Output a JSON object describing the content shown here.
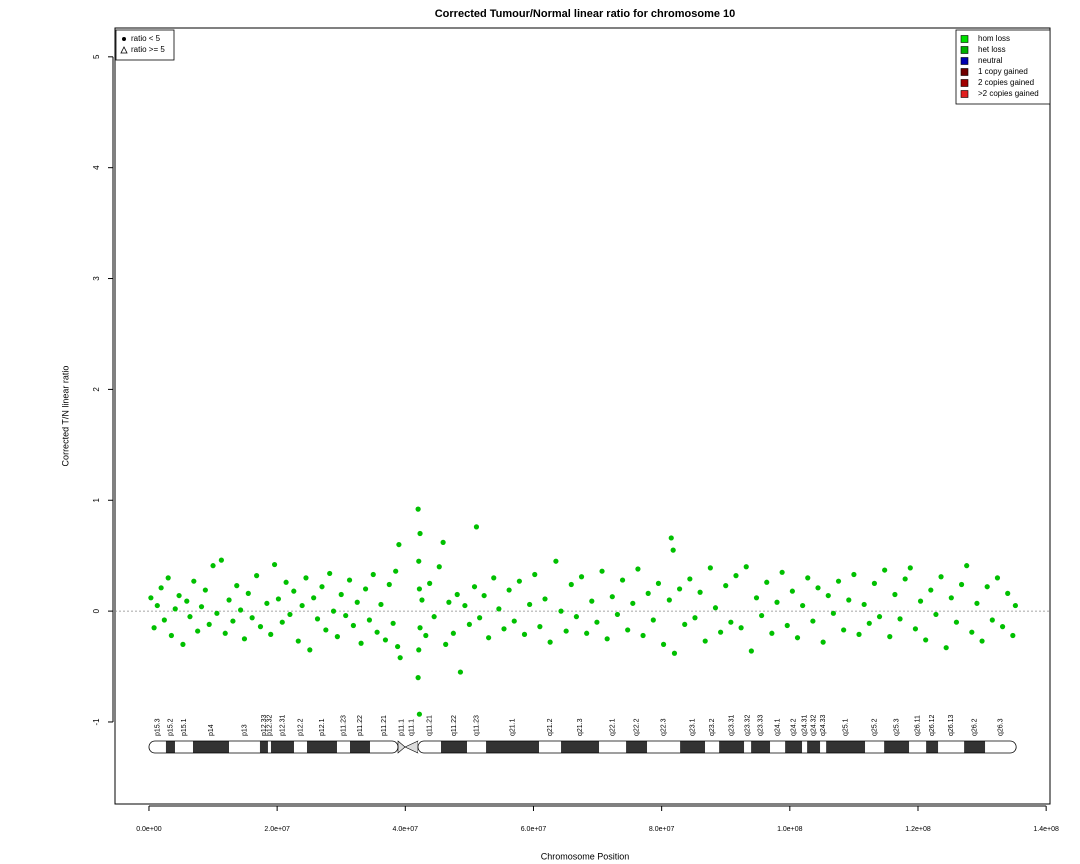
{
  "chart_data": {
    "type": "scatter",
    "title": "Corrected Tumour/Normal linear ratio for chromosome  10",
    "xlabel": "Chromosome Position",
    "ylabel": "Corrected T/N linear ratio",
    "xlim": [
      -5300000,
      140600000
    ],
    "ylim": [
      -1.74,
      5.26
    ],
    "xticks": [
      {
        "value": 0,
        "label": "0.0e+00"
      },
      {
        "value": 20000000,
        "label": "2.0e+07"
      },
      {
        "value": 40000000,
        "label": "4.0e+07"
      },
      {
        "value": 60000000,
        "label": "6.0e+07"
      },
      {
        "value": 80000000,
        "label": "8.0e+07"
      },
      {
        "value": 100000000,
        "label": "1.0e+08"
      },
      {
        "value": 120000000,
        "label": "1.2e+08"
      },
      {
        "value": 140000000,
        "label": "1.4e+08"
      }
    ],
    "yticks": [
      -1,
      0,
      1,
      2,
      3,
      4,
      5
    ],
    "reference_line": 0,
    "color": "#00c000",
    "marker_legend": [
      "ratio < 5",
      "ratio >= 5"
    ],
    "state_legend": [
      {
        "name": "hom loss",
        "color": "#00e000"
      },
      {
        "name": "het loss",
        "color": "#00b000"
      },
      {
        "name": "neutral",
        "color": "#0000b0"
      },
      {
        "name": "1 copy gained",
        "color": "#700000"
      },
      {
        "name": "2 copies gained",
        "color": "#a00000"
      },
      {
        "name": ">2 copies gained",
        "color": "#e02020"
      }
    ],
    "x": [
      300000,
      800000,
      1300000,
      1900000,
      2400000,
      3000000,
      3500000,
      4100000,
      4700000,
      5300000,
      5900000,
      6400000,
      7000000,
      7600000,
      8200000,
      8800000,
      9400000,
      10000000,
      10600000,
      11300000,
      11900000,
      12500000,
      13100000,
      13700000,
      14300000,
      14900000,
      15500000,
      16100000,
      16800000,
      17400000,
      18400000,
      19000000,
      19600000,
      20200000,
      20800000,
      21400000,
      22000000,
      22600000,
      23300000,
      23900000,
      24500000,
      25100000,
      25700000,
      26300000,
      27000000,
      27600000,
      28200000,
      28800000,
      29400000,
      30000000,
      30700000,
      31300000,
      31900000,
      32500000,
      33100000,
      33800000,
      34400000,
      35000000,
      35600000,
      36200000,
      36900000,
      37500000,
      38100000,
      38500000,
      38800000,
      39000000,
      39200000,
      42000000,
      42000000,
      42100000,
      42100000,
      42200000,
      42200000,
      42300000,
      42300000,
      42600000,
      43200000,
      43800000,
      44500000,
      45300000,
      45900000,
      46300000,
      46800000,
      47500000,
      48100000,
      48600000,
      49300000,
      50000000,
      50800000,
      51100000,
      51600000,
      52300000,
      53000000,
      53800000,
      54600000,
      55400000,
      56200000,
      57000000,
      57800000,
      58600000,
      59400000,
      60200000,
      61000000,
      61800000,
      62600000,
      63500000,
      64300000,
      65100000,
      65900000,
      66700000,
      67500000,
      68300000,
      69100000,
      69900000,
      70700000,
      71500000,
      72300000,
      73100000,
      73900000,
      74700000,
      75500000,
      76300000,
      77100000,
      77900000,
      78700000,
      79500000,
      80300000,
      81200000,
      81500000,
      81800000,
      82000000,
      82800000,
      83600000,
      84400000,
      85200000,
      86000000,
      86800000,
      87600000,
      88400000,
      89200000,
      90000000,
      90800000,
      91600000,
      92400000,
      93200000,
      94000000,
      94800000,
      95600000,
      96400000,
      97200000,
      98000000,
      98800000,
      99600000,
      100400000,
      101200000,
      102000000,
      102800000,
      103600000,
      104400000,
      105200000,
      106000000,
      106800000,
      107600000,
      108400000,
      109200000,
      110000000,
      110800000,
      111600000,
      112400000,
      113200000,
      114000000,
      114800000,
      115600000,
      116400000,
      117200000,
      118000000,
      118800000,
      119600000,
      120400000,
      121200000,
      122000000,
      122800000,
      123600000,
      124400000,
      125200000,
      126000000,
      126800000,
      127600000,
      128400000,
      129200000,
      130000000,
      130800000,
      131600000,
      132400000,
      133200000,
      134000000,
      134800000,
      135200000
    ],
    "y": [
      0.12,
      -0.15,
      0.05,
      0.21,
      -0.08,
      0.3,
      -0.22,
      0.02,
      0.14,
      -0.3,
      0.09,
      -0.05,
      0.27,
      -0.18,
      0.04,
      0.19,
      -0.12,
      0.41,
      -0.02,
      0.46,
      -0.2,
      0.1,
      -0.09,
      0.23,
      0.01,
      -0.25,
      0.16,
      -0.06,
      0.32,
      -0.14,
      0.07,
      -0.21,
      0.42,
      0.11,
      -0.1,
      0.26,
      -0.03,
      0.18,
      -0.27,
      0.05,
      0.3,
      -0.35,
      0.12,
      -0.07,
      0.22,
      -0.17,
      0.34,
      0.0,
      -0.23,
      0.15,
      -0.04,
      0.28,
      -0.13,
      0.08,
      -0.29,
      0.2,
      -0.08,
      0.33,
      -0.19,
      0.06,
      -0.26,
      0.24,
      -0.11,
      0.36,
      -0.32,
      0.6,
      -0.42,
      0.92,
      -0.6,
      0.45,
      -0.35,
      0.2,
      -0.93,
      0.7,
      -0.15,
      0.1,
      -0.22,
      0.25,
      -0.05,
      0.4,
      0.62,
      -0.3,
      0.08,
      -0.2,
      0.15,
      -0.55,
      0.05,
      -0.12,
      0.22,
      0.76,
      -0.06,
      0.14,
      -0.24,
      0.3,
      0.02,
      -0.16,
      0.19,
      -0.09,
      0.27,
      -0.21,
      0.06,
      0.33,
      -0.14,
      0.11,
      -0.28,
      0.45,
      0.0,
      -0.18,
      0.24,
      -0.05,
      0.31,
      -0.2,
      0.09,
      -0.1,
      0.36,
      -0.25,
      0.13,
      -0.03,
      0.28,
      -0.17,
      0.07,
      0.38,
      -0.22,
      0.16,
      -0.08,
      0.25,
      -0.3,
      0.1,
      0.66,
      0.55,
      -0.38,
      0.2,
      -0.12,
      0.29,
      -0.06,
      0.17,
      -0.27,
      0.39,
      0.03,
      -0.19,
      0.23,
      -0.1,
      0.32,
      -0.15,
      0.4,
      -0.36,
      0.12,
      -0.04,
      0.26,
      -0.2,
      0.08,
      0.35,
      -0.13,
      0.18,
      -0.24,
      0.05,
      0.3,
      -0.09,
      0.21,
      -0.28,
      0.14,
      -0.02,
      0.27,
      -0.17,
      0.1,
      0.33,
      -0.21,
      0.06,
      -0.11,
      0.25,
      -0.05,
      0.37,
      -0.23,
      0.15,
      -0.07,
      0.29,
      0.39,
      -0.16,
      0.09,
      -0.26,
      0.19,
      -0.03,
      0.31,
      -0.33,
      0.12,
      -0.1,
      0.24,
      0.41,
      -0.19,
      0.07,
      -0.27,
      0.22,
      -0.08,
      0.3,
      -0.14,
      0.16,
      -0.22,
      0.05
    ],
    "bands": [
      {
        "name": "p15.3",
        "start": 0,
        "end": 2650000,
        "stain": "gneg"
      },
      {
        "name": "p15.2",
        "start": 2650000,
        "end": 4060000,
        "stain": "gpos"
      },
      {
        "name": "p15.1",
        "start": 4060000,
        "end": 6870000,
        "stain": "gneg"
      },
      {
        "name": "p14",
        "start": 6870000,
        "end": 12490000,
        "stain": "gpos"
      },
      {
        "name": "p13",
        "start": 12490000,
        "end": 17320000,
        "stain": "gneg"
      },
      {
        "name": "p12.33",
        "start": 17320000,
        "end": 18570000,
        "stain": "gpos"
      },
      {
        "name": "p12.32",
        "start": 18570000,
        "end": 19040000,
        "stain": "gneg"
      },
      {
        "name": "p12.31",
        "start": 19040000,
        "end": 22630000,
        "stain": "gpos"
      },
      {
        "name": "p12.2",
        "start": 22630000,
        "end": 24660000,
        "stain": "gneg"
      },
      {
        "name": "p12.1",
        "start": 24660000,
        "end": 29340000,
        "stain": "gpos"
      },
      {
        "name": "p11.23",
        "start": 29340000,
        "end": 31370000,
        "stain": "gneg"
      },
      {
        "name": "p11.22",
        "start": 31370000,
        "end": 34490000,
        "stain": "gpos"
      },
      {
        "name": "p11.21",
        "start": 34490000,
        "end": 38860000,
        "stain": "gneg"
      },
      {
        "name": "p11.1",
        "start": 38860000,
        "end": 39960000,
        "stain": "acen"
      },
      {
        "name": "q11.1",
        "start": 39960000,
        "end": 41980000,
        "stain": "acen"
      },
      {
        "name": "q11.21",
        "start": 41980000,
        "end": 45570000,
        "stain": "gneg"
      },
      {
        "name": "q11.22",
        "start": 45570000,
        "end": 49630000,
        "stain": "gpos"
      },
      {
        "name": "q11.23",
        "start": 49630000,
        "end": 52600000,
        "stain": "gneg"
      },
      {
        "name": "q21.1",
        "start": 52600000,
        "end": 60870000,
        "stain": "gpos"
      },
      {
        "name": "q21.2",
        "start": 60870000,
        "end": 64300000,
        "stain": "gneg"
      },
      {
        "name": "q21.3",
        "start": 64300000,
        "end": 70240000,
        "stain": "gpos"
      },
      {
        "name": "q22.1",
        "start": 70240000,
        "end": 74450000,
        "stain": "gneg"
      },
      {
        "name": "q22.2",
        "start": 74450000,
        "end": 77730000,
        "stain": "gpos"
      },
      {
        "name": "q22.3",
        "start": 77730000,
        "end": 82880000,
        "stain": "gneg"
      },
      {
        "name": "q23.1",
        "start": 82880000,
        "end": 86780000,
        "stain": "gpos"
      },
      {
        "name": "q23.2",
        "start": 86780000,
        "end": 88970000,
        "stain": "gneg"
      },
      {
        "name": "q23.31",
        "start": 88970000,
        "end": 92870000,
        "stain": "gpos"
      },
      {
        "name": "q23.32",
        "start": 92870000,
        "end": 93960000,
        "stain": "gneg"
      },
      {
        "name": "q23.33",
        "start": 93960000,
        "end": 96920000,
        "stain": "gpos"
      },
      {
        "name": "q24.1",
        "start": 96920000,
        "end": 99270000,
        "stain": "gneg"
      },
      {
        "name": "q24.2",
        "start": 99270000,
        "end": 101920000,
        "stain": "gpos"
      },
      {
        "name": "q24.31",
        "start": 101920000,
        "end": 102700000,
        "stain": "gneg"
      },
      {
        "name": "q24.32",
        "start": 102700000,
        "end": 104730000,
        "stain": "gpos"
      },
      {
        "name": "q24.33",
        "start": 104730000,
        "end": 105670000,
        "stain": "gneg"
      },
      {
        "name": "q25.1",
        "start": 105670000,
        "end": 111750000,
        "stain": "gpos"
      },
      {
        "name": "q25.2",
        "start": 111750000,
        "end": 114720000,
        "stain": "gneg"
      },
      {
        "name": "q25.3",
        "start": 114720000,
        "end": 118620000,
        "stain": "gpos"
      },
      {
        "name": "q26.11",
        "start": 118620000,
        "end": 121270000,
        "stain": "gneg"
      },
      {
        "name": "q26.12",
        "start": 121270000,
        "end": 123150000,
        "stain": "gpos"
      },
      {
        "name": "q26.13",
        "start": 123150000,
        "end": 127200000,
        "stain": "gneg"
      },
      {
        "name": "q26.2",
        "start": 127200000,
        "end": 130480000,
        "stain": "gpos"
      },
      {
        "name": "q26.3",
        "start": 130480000,
        "end": 135320000,
        "stain": "gneg"
      }
    ]
  }
}
